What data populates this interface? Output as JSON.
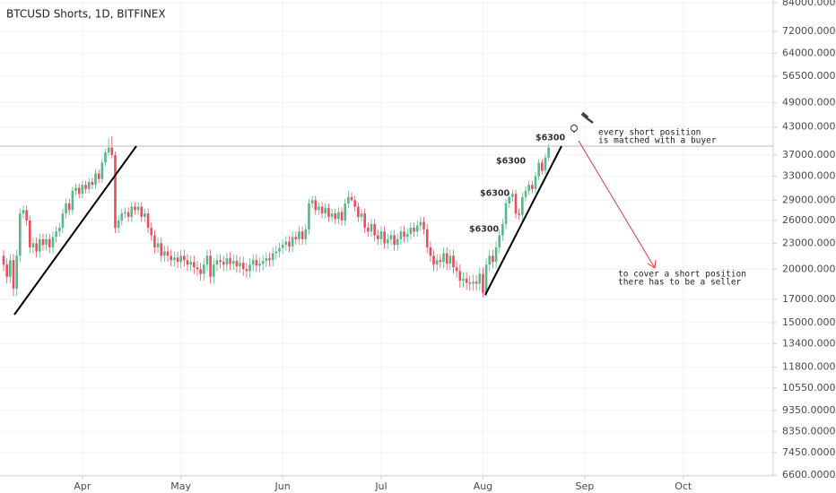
{
  "chart_data": {
    "type": "candlestick",
    "title": "BTCUSD Shorts, 1D, BITFINEX",
    "open": [
      21500,
      20500,
      19200,
      21000,
      18000,
      21500,
      27000,
      27500,
      26000,
      22500,
      23000,
      22000,
      23500,
      22800,
      23500,
      22500,
      23800,
      24500,
      25000,
      27000,
      28500,
      27500,
      30500,
      31000,
      30000,
      31500,
      30800,
      32000,
      31500,
      33500,
      32500,
      35500,
      37500,
      38500,
      37000,
      25000,
      26000,
      27000,
      27200,
      26500,
      28000,
      27500,
      28000,
      26500,
      27000,
      25000,
      24000,
      22500,
      23000,
      21500,
      22000,
      21500,
      21000,
      21300,
      20800,
      21500,
      21000,
      20500,
      20800,
      20200,
      20000,
      19500,
      20500,
      21500,
      19200,
      20500,
      21000,
      20800,
      20500,
      21200,
      20600,
      20900,
      20300,
      20700,
      20000,
      19800,
      20500,
      21000,
      20400,
      20600,
      20900,
      21200,
      21000,
      21800,
      22000,
      22400,
      22800,
      23200,
      22600,
      23800,
      23500,
      24500,
      23500,
      24800,
      28500,
      29000,
      27500,
      28000,
      27000,
      27800,
      26500,
      27000,
      26200,
      27200,
      26000,
      28500,
      29500,
      29000,
      28000,
      26500,
      27000,
      25000,
      24500,
      25500,
      24000,
      23500,
      24500,
      23000,
      23500,
      24000,
      22800,
      23500,
      24500,
      23800,
      24200,
      25000,
      24500,
      25300,
      25800,
      24800,
      22500,
      21500,
      20500,
      21000,
      20800,
      21800,
      20600,
      21500,
      20200,
      19800,
      18800,
      19000,
      18600,
      18500,
      18700,
      18500,
      19500,
      17600,
      20500,
      21500,
      20800,
      22500,
      24000,
      25500,
      28500,
      29500,
      30000,
      27000,
      26800,
      29500,
      30500,
      31500,
      30800,
      33000,
      35500,
      34000,
      36500
    ],
    "high": [
      22200,
      21200,
      21700,
      21700,
      22200,
      27700,
      28200,
      28200,
      26700,
      23700,
      23700,
      24200,
      24200,
      24200,
      24200,
      24500,
      25200,
      25700,
      27700,
      29200,
      29200,
      31200,
      31700,
      31700,
      32200,
      32200,
      32700,
      32700,
      34200,
      34200,
      36200,
      38200,
      40500,
      41000,
      37700,
      26700,
      27700,
      27900,
      27900,
      28700,
      28700,
      28700,
      28700,
      27700,
      27700,
      25700,
      24700,
      23700,
      23700,
      22700,
      22700,
      22200,
      22000,
      22000,
      22200,
      22200,
      21700,
      21500,
      21500,
      20900,
      20700,
      21200,
      22200,
      22200,
      21200,
      21700,
      21700,
      21500,
      21900,
      21900,
      21600,
      21600,
      21400,
      21400,
      20700,
      21200,
      21700,
      21700,
      21300,
      21600,
      21900,
      21900,
      22500,
      22700,
      23100,
      23500,
      23900,
      23900,
      24500,
      24500,
      25200,
      25200,
      25500,
      29200,
      29700,
      29700,
      28700,
      28700,
      28500,
      28500,
      27700,
      27700,
      27900,
      27900,
      29200,
      30500,
      30200,
      29700,
      28700,
      27700,
      27700,
      25700,
      26200,
      26200,
      24700,
      25200,
      25200,
      24200,
      24700,
      24700,
      24200,
      25200,
      25200,
      24900,
      25700,
      25700,
      26000,
      26500,
      26500,
      25500,
      23200,
      22200,
      21700,
      21700,
      22500,
      22500,
      22200,
      22200,
      20900,
      20500,
      19700,
      19700,
      19300,
      19400,
      19400,
      20200,
      20200,
      21200,
      22200,
      22200,
      23200,
      24700,
      26200,
      29200,
      30200,
      30700,
      30700,
      27700,
      30200,
      31200,
      32200,
      32200,
      33700,
      36200,
      36200,
      37200,
      39200
    ],
    "low": [
      19800,
      18500,
      18500,
      17300,
      17300,
      20800,
      26300,
      25300,
      21800,
      21800,
      21300,
      21300,
      22100,
      22100,
      21800,
      21800,
      23100,
      23800,
      24300,
      26300,
      26800,
      26800,
      29800,
      29300,
      29300,
      30100,
      30100,
      30800,
      30800,
      31800,
      31800,
      34800,
      36800,
      36300,
      24300,
      24300,
      25300,
      26300,
      25800,
      25800,
      26800,
      26800,
      25800,
      25800,
      24300,
      23300,
      21800,
      21800,
      20800,
      20800,
      20800,
      20300,
      20300,
      20100,
      20100,
      20300,
      19800,
      19800,
      19500,
      19300,
      18800,
      18800,
      19800,
      18500,
      18500,
      19800,
      20100,
      19800,
      19800,
      19900,
      19900,
      19600,
      19600,
      19300,
      19100,
      19100,
      19800,
      19700,
      19700,
      19900,
      20200,
      20300,
      20300,
      21100,
      21300,
      21700,
      22100,
      21900,
      21900,
      22800,
      22800,
      22800,
      22800,
      24100,
      27800,
      26800,
      26800,
      26300,
      26300,
      25800,
      25800,
      25500,
      25500,
      25300,
      25300,
      27800,
      28800,
      27300,
      25800,
      25800,
      24300,
      23800,
      23800,
      23300,
      22800,
      22800,
      22300,
      22300,
      22800,
      22100,
      22100,
      22800,
      23100,
      23100,
      23500,
      23800,
      23800,
      24600,
      24100,
      21800,
      20800,
      19800,
      19800,
      20100,
      20100,
      19900,
      19900,
      19500,
      19100,
      18100,
      18100,
      17900,
      17800,
      17800,
      17800,
      17800,
      17200,
      17200,
      19800,
      20100,
      20100,
      21800,
      23300,
      24800,
      27800,
      28800,
      26300,
      26100,
      26100,
      28800,
      29800,
      30100,
      30100,
      32300,
      33300,
      33300,
      35800
    ],
    "close": [
      20500,
      19200,
      21000,
      18000,
      21500,
      27000,
      27500,
      26000,
      22500,
      23000,
      22000,
      23500,
      22800,
      23500,
      22500,
      23800,
      24500,
      25000,
      27000,
      28500,
      27500,
      30500,
      31000,
      30000,
      31500,
      30800,
      32000,
      31500,
      33500,
      32500,
      35500,
      37500,
      38500,
      37000,
      25000,
      26000,
      27000,
      27200,
      26500,
      28000,
      27500,
      28000,
      26500,
      27000,
      25000,
      24000,
      22500,
      23000,
      21500,
      22000,
      21500,
      21000,
      21300,
      20800,
      21500,
      21000,
      20500,
      20800,
      20200,
      20000,
      19500,
      20500,
      21500,
      19200,
      20500,
      21000,
      20800,
      20500,
      21200,
      20600,
      20900,
      20300,
      20700,
      20000,
      19800,
      20500,
      21000,
      20400,
      20600,
      20900,
      21200,
      21000,
      21800,
      22000,
      22400,
      22800,
      23200,
      22600,
      23800,
      23500,
      24500,
      23500,
      24800,
      28500,
      29000,
      27500,
      28000,
      27000,
      27800,
      26500,
      27000,
      26200,
      27200,
      26000,
      28500,
      29500,
      29000,
      28000,
      26500,
      27000,
      25000,
      24500,
      25500,
      24000,
      23500,
      24500,
      23000,
      23500,
      24000,
      22800,
      23500,
      24500,
      23800,
      24200,
      25000,
      24500,
      25300,
      25800,
      24800,
      22500,
      21500,
      20500,
      21000,
      20800,
      21800,
      20600,
      21500,
      20200,
      19800,
      18800,
      19000,
      18600,
      18500,
      18700,
      18500,
      19500,
      17600,
      20500,
      21500,
      20800,
      22500,
      24000,
      25500,
      28500,
      29500,
      30000,
      27000,
      26800,
      29500,
      30500,
      31500,
      30800,
      33000,
      35500,
      34000,
      36500,
      38500
    ],
    "up_color": "#53b987",
    "down_color": "#eb4d5c",
    "log_scale": true,
    "grid": true,
    "xlim": [
      -1.1,
      234.4
    ],
    "xticks": [
      {
        "value": 24,
        "label": "Apr"
      },
      {
        "value": 54,
        "label": "May"
      },
      {
        "value": 85,
        "label": "Jun"
      },
      {
        "value": 115,
        "label": "Jul"
      },
      {
        "value": 146,
        "label": "Aug"
      },
      {
        "value": 177,
        "label": "Sep"
      },
      {
        "value": 207,
        "label": "Oct"
      }
    ],
    "ylim": [
      6600,
      84000
    ],
    "yticks": [
      {
        "value": 84000,
        "label": "84000.0000"
      },
      {
        "value": 72000,
        "label": "72000.0000"
      },
      {
        "value": 64000,
        "label": "64000.0000"
      },
      {
        "value": 56500,
        "label": "56500.0000"
      },
      {
        "value": 49000,
        "label": "49000.0000"
      },
      {
        "value": 43000,
        "label": "43000.0000"
      },
      {
        "value": 37000,
        "label": "37000.0000"
      },
      {
        "value": 33000,
        "label": "33000.0000"
      },
      {
        "value": 29000,
        "label": "29000.0000"
      },
      {
        "value": 26000,
        "label": "26000.0000"
      },
      {
        "value": 23000,
        "label": "23000.0000"
      },
      {
        "value": 20000,
        "label": "20000.0000"
      },
      {
        "value": 17000,
        "label": "17000.0000"
      },
      {
        "value": 15000,
        "label": "15000.0000"
      },
      {
        "value": 13400,
        "label": "13400.0000"
      },
      {
        "value": 11800,
        "label": "11800.0000"
      },
      {
        "value": 10550,
        "label": "10550.0000"
      },
      {
        "value": 9350,
        "label": "9350.0000"
      },
      {
        "value": 8350,
        "label": "8350.0000"
      },
      {
        "value": 7450,
        "label": "7450.0000"
      },
      {
        "value": 6600,
        "label": "6600.0000"
      }
    ],
    "annotations": [
      "$6300",
      "$6300",
      "$6300",
      "$6300",
      "every short position",
      "is matched with a buyer",
      "to cover a short position",
      "there has to be a seller"
    ]
  }
}
